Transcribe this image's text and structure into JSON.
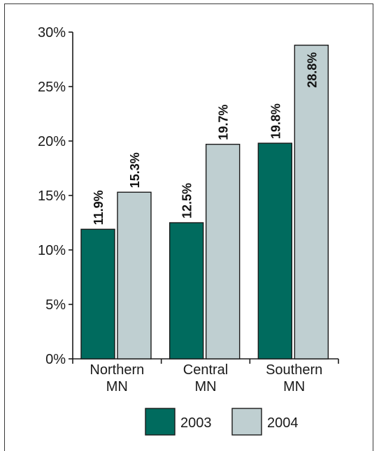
{
  "chart_data": {
    "type": "bar",
    "categories": [
      [
        "Northern",
        "MN"
      ],
      [
        "Central",
        "MN"
      ],
      [
        "Southern",
        "MN"
      ]
    ],
    "series": [
      {
        "name": "2003",
        "values": [
          11.9,
          12.5,
          19.8
        ],
        "labels": [
          "11.9%",
          "12.5%",
          "19.8%"
        ],
        "color": "#006b5e"
      },
      {
        "name": "2004",
        "values": [
          15.3,
          19.7,
          28.8
        ],
        "labels": [
          "15.3%",
          "19.7%",
          "28.8%"
        ],
        "color": "#bfcfd1"
      }
    ],
    "ylim": [
      0,
      30
    ],
    "yticks": [
      0,
      5,
      10,
      15,
      20,
      25,
      30
    ],
    "ytick_labels": [
      "0%",
      "5%",
      "10%",
      "15%",
      "20%",
      "25%",
      "30%"
    ],
    "legend_placement": "bottom-center",
    "grid": false,
    "bar_outline_color": "#1a1a1a"
  }
}
